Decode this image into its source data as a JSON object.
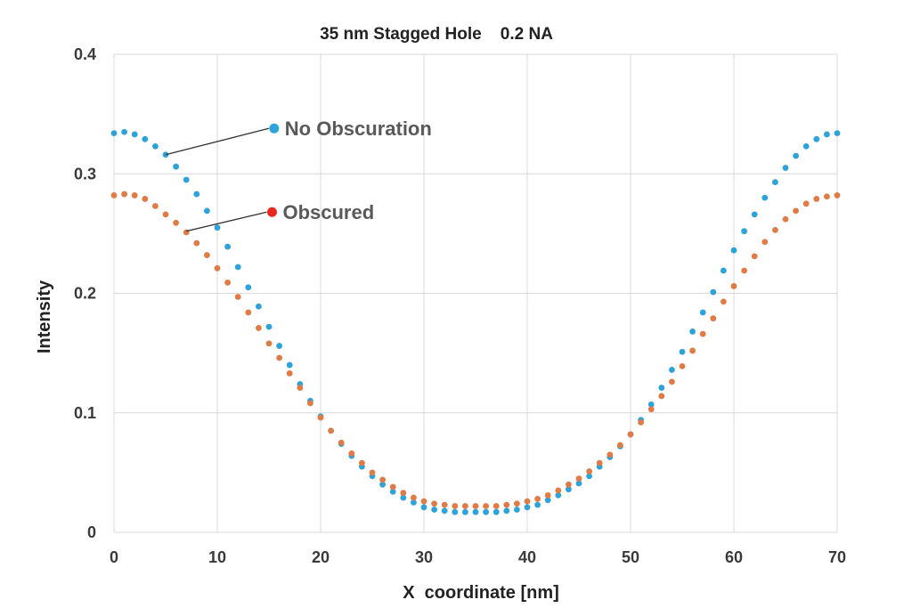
{
  "chart_data": {
    "type": "scatter",
    "title": "35 nm Stagged Hole    0.2 NA",
    "xlabel": "X  coordinate [nm]",
    "ylabel": "Intensity",
    "xlim": [
      0,
      70
    ],
    "ylim": [
      0,
      0.4
    ],
    "x_ticks": [
      "0",
      "10",
      "20",
      "30",
      "40",
      "50",
      "60",
      "70"
    ],
    "y_ticks": [
      "0",
      "0.1",
      "0.2",
      "0.3",
      "0.4"
    ],
    "grid": true,
    "legend_placement": "inside, upper-left with leader lines to curves",
    "series": [
      {
        "name": "No Obscuration",
        "color": "#2ea3d9",
        "x": [
          0,
          1,
          2,
          3,
          4,
          5,
          6,
          7,
          8,
          9,
          10,
          11,
          12,
          13,
          14,
          15,
          16,
          17,
          18,
          19,
          20,
          21,
          22,
          23,
          24,
          25,
          26,
          27,
          28,
          29,
          30,
          31,
          32,
          33,
          34,
          35,
          36,
          37,
          38,
          39,
          40,
          41,
          42,
          43,
          44,
          45,
          46,
          47,
          48,
          49,
          50,
          51,
          52,
          53,
          54,
          55,
          56,
          57,
          58,
          59,
          60,
          61,
          62,
          63,
          64,
          65,
          66,
          67,
          68,
          69,
          70
        ],
        "y": [
          0.334,
          0.335,
          0.333,
          0.329,
          0.323,
          0.316,
          0.306,
          0.295,
          0.283,
          0.269,
          0.255,
          0.239,
          0.222,
          0.205,
          0.189,
          0.172,
          0.156,
          0.14,
          0.124,
          0.11,
          0.097,
          0.085,
          0.074,
          0.064,
          0.055,
          0.047,
          0.04,
          0.034,
          0.029,
          0.025,
          0.021,
          0.019,
          0.018,
          0.017,
          0.017,
          0.017,
          0.017,
          0.017,
          0.018,
          0.019,
          0.021,
          0.023,
          0.027,
          0.031,
          0.036,
          0.041,
          0.047,
          0.055,
          0.063,
          0.072,
          0.082,
          0.094,
          0.107,
          0.121,
          0.136,
          0.151,
          0.168,
          0.184,
          0.201,
          0.219,
          0.236,
          0.252,
          0.266,
          0.28,
          0.293,
          0.305,
          0.315,
          0.323,
          0.329,
          0.333,
          0.334
        ]
      },
      {
        "name": "Obscured",
        "color": "#e07b45",
        "x": [
          0,
          1,
          2,
          3,
          4,
          5,
          6,
          7,
          8,
          9,
          10,
          11,
          12,
          13,
          14,
          15,
          16,
          17,
          18,
          19,
          20,
          21,
          22,
          23,
          24,
          25,
          26,
          27,
          28,
          29,
          30,
          31,
          32,
          33,
          34,
          35,
          36,
          37,
          38,
          39,
          40,
          41,
          42,
          43,
          44,
          45,
          46,
          47,
          48,
          49,
          50,
          51,
          52,
          53,
          54,
          55,
          56,
          57,
          58,
          59,
          60,
          61,
          62,
          63,
          64,
          65,
          66,
          67,
          68,
          69,
          70
        ],
        "y": [
          0.282,
          0.283,
          0.282,
          0.279,
          0.273,
          0.266,
          0.259,
          0.251,
          0.242,
          0.232,
          0.221,
          0.209,
          0.197,
          0.184,
          0.171,
          0.158,
          0.146,
          0.133,
          0.121,
          0.108,
          0.096,
          0.085,
          0.075,
          0.066,
          0.058,
          0.05,
          0.044,
          0.038,
          0.033,
          0.029,
          0.026,
          0.024,
          0.023,
          0.022,
          0.022,
          0.022,
          0.022,
          0.022,
          0.023,
          0.024,
          0.026,
          0.028,
          0.031,
          0.035,
          0.04,
          0.045,
          0.051,
          0.058,
          0.065,
          0.073,
          0.082,
          0.092,
          0.103,
          0.114,
          0.126,
          0.139,
          0.152,
          0.166,
          0.179,
          0.193,
          0.206,
          0.219,
          0.231,
          0.243,
          0.253,
          0.262,
          0.269,
          0.275,
          0.279,
          0.281,
          0.282
        ]
      }
    ],
    "annotations": [
      {
        "series": 0,
        "label": "No Obscuration",
        "from_x": 5,
        "from_y": 0.316,
        "marker_x": 15.5,
        "marker_y": 0.338
      },
      {
        "series": 1,
        "label": "Obscured",
        "from_x": 7,
        "from_y": 0.252,
        "marker_x": 15.3,
        "marker_y": 0.268
      }
    ]
  }
}
